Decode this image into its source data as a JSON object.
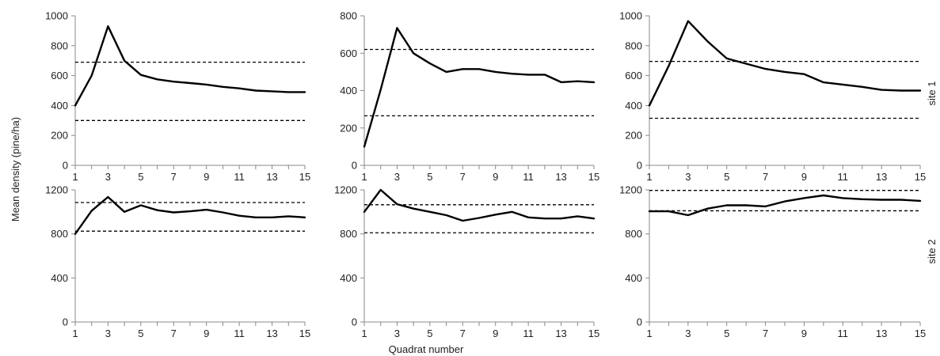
{
  "figure": {
    "ylabel": "Mean density (pine/ha)",
    "xlabel": "Quadrat number",
    "row_labels": [
      "site 1",
      "site 2"
    ]
  },
  "colors": {
    "line": "#000000",
    "bound": "#000000",
    "axis": "#888888",
    "text": "#222222"
  },
  "chart_data": [
    {
      "type": "line",
      "row": 0,
      "col": 0,
      "x": [
        1,
        2,
        3,
        4,
        5,
        6,
        7,
        8,
        9,
        10,
        11,
        12,
        13,
        14,
        15
      ],
      "values": [
        400,
        600,
        930,
        700,
        605,
        575,
        560,
        550,
        540,
        525,
        515,
        500,
        495,
        490,
        490
      ],
      "bounds": [
        690,
        300
      ],
      "ylim": [
        0,
        1000
      ],
      "yticks": [
        0,
        200,
        400,
        600,
        800,
        1000
      ],
      "xlim": [
        1,
        15
      ],
      "xticks": [
        1,
        3,
        5,
        7,
        9,
        11,
        13,
        15
      ]
    },
    {
      "type": "line",
      "row": 0,
      "col": 1,
      "x": [
        1,
        2,
        3,
        4,
        5,
        6,
        7,
        8,
        9,
        10,
        11,
        12,
        13,
        14,
        15
      ],
      "values": [
        100,
        405,
        735,
        600,
        545,
        500,
        515,
        515,
        500,
        490,
        485,
        485,
        445,
        450,
        445
      ],
      "bounds": [
        620,
        265
      ],
      "ylim": [
        0,
        800
      ],
      "yticks": [
        0,
        200,
        400,
        600,
        800
      ],
      "xlim": [
        1,
        15
      ],
      "xticks": [
        1,
        3,
        5,
        7,
        9,
        11,
        13,
        15
      ]
    },
    {
      "type": "line",
      "row": 0,
      "col": 2,
      "x": [
        1,
        2,
        3,
        4,
        5,
        6,
        7,
        8,
        9,
        10,
        11,
        12,
        13,
        14,
        15
      ],
      "values": [
        400,
        665,
        965,
        830,
        715,
        680,
        645,
        625,
        610,
        555,
        540,
        525,
        505,
        500,
        500
      ],
      "bounds": [
        695,
        315
      ],
      "ylim": [
        0,
        1000
      ],
      "yticks": [
        0,
        200,
        400,
        600,
        800,
        1000
      ],
      "xlim": [
        1,
        15
      ],
      "xticks": [
        1,
        3,
        5,
        7,
        9,
        11,
        13,
        15
      ]
    },
    {
      "type": "line",
      "row": 1,
      "col": 0,
      "x": [
        1,
        2,
        3,
        4,
        5,
        6,
        7,
        8,
        9,
        10,
        11,
        12,
        13,
        14,
        15
      ],
      "values": [
        800,
        1010,
        1135,
        1000,
        1060,
        1015,
        995,
        1005,
        1020,
        995,
        965,
        950,
        950,
        960,
        950
      ],
      "bounds": [
        1085,
        825
      ],
      "ylim": [
        0,
        1200
      ],
      "yticks": [
        0,
        400,
        800,
        1200
      ],
      "xlim": [
        1,
        15
      ],
      "xticks": [
        1,
        3,
        5,
        7,
        9,
        11,
        13,
        15
      ]
    },
    {
      "type": "line",
      "row": 1,
      "col": 1,
      "x": [
        1,
        2,
        3,
        4,
        5,
        6,
        7,
        8,
        9,
        10,
        11,
        12,
        13,
        14,
        15
      ],
      "values": [
        1000,
        1200,
        1070,
        1030,
        1000,
        970,
        920,
        945,
        975,
        1000,
        950,
        940,
        940,
        960,
        940
      ],
      "bounds": [
        1065,
        810
      ],
      "ylim": [
        0,
        1200
      ],
      "yticks": [
        0,
        400,
        800,
        1200
      ],
      "xlim": [
        1,
        15
      ],
      "xticks": [
        1,
        3,
        5,
        7,
        9,
        11,
        13,
        15
      ]
    },
    {
      "type": "line",
      "row": 1,
      "col": 2,
      "x": [
        1,
        2,
        3,
        4,
        5,
        6,
        7,
        8,
        9,
        10,
        11,
        12,
        13,
        14,
        15
      ],
      "values": [
        1005,
        1005,
        970,
        1030,
        1060,
        1060,
        1050,
        1095,
        1125,
        1150,
        1125,
        1115,
        1110,
        1110,
        1100
      ],
      "bounds": [
        1195,
        1010
      ],
      "ylim": [
        0,
        1200
      ],
      "yticks": [
        0,
        400,
        800,
        1200
      ],
      "xlim": [
        1,
        15
      ],
      "xticks": [
        1,
        3,
        5,
        7,
        9,
        11,
        13,
        15
      ]
    }
  ]
}
